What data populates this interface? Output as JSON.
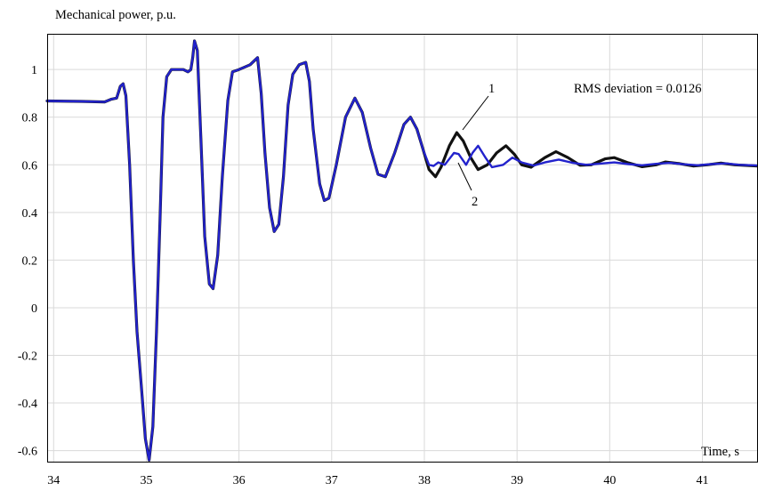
{
  "chart_data": {
    "type": "line",
    "title": "",
    "ylabel": "Mechanical power, p.u.",
    "xlabel": "Time, s",
    "annotation": "RMS deviation = 0.0126",
    "xlim": [
      33.93,
      41.6
    ],
    "ylim": [
      -0.65,
      1.15
    ],
    "xticks": [
      34,
      35,
      36,
      37,
      38,
      39,
      40,
      41
    ],
    "yticks": [
      -0.6,
      -0.4,
      -0.2,
      0,
      0.2,
      0.4,
      0.6,
      0.8,
      1
    ],
    "grid": true,
    "series": [
      {
        "name": "1",
        "color": "#111111",
        "points": [
          [
            33.93,
            0.868
          ],
          [
            34.3,
            0.866
          ],
          [
            34.55,
            0.864
          ],
          [
            34.62,
            0.875
          ],
          [
            34.68,
            0.88
          ],
          [
            34.72,
            0.93
          ],
          [
            34.75,
            0.94
          ],
          [
            34.78,
            0.89
          ],
          [
            34.82,
            0.6
          ],
          [
            34.86,
            0.2
          ],
          [
            34.9,
            -0.1
          ],
          [
            34.95,
            -0.35
          ],
          [
            34.99,
            -0.55
          ],
          [
            35.03,
            -0.64
          ],
          [
            35.07,
            -0.5
          ],
          [
            35.11,
            -0.1
          ],
          [
            35.15,
            0.4
          ],
          [
            35.18,
            0.8
          ],
          [
            35.22,
            0.97
          ],
          [
            35.27,
            1.0
          ],
          [
            35.4,
            1.0
          ],
          [
            35.45,
            0.99
          ],
          [
            35.48,
            1.0
          ],
          [
            35.5,
            1.05
          ],
          [
            35.52,
            1.12
          ],
          [
            35.55,
            1.08
          ],
          [
            35.59,
            0.7
          ],
          [
            35.63,
            0.3
          ],
          [
            35.68,
            0.1
          ],
          [
            35.72,
            0.08
          ],
          [
            35.77,
            0.22
          ],
          [
            35.82,
            0.55
          ],
          [
            35.88,
            0.87
          ],
          [
            35.93,
            0.99
          ],
          [
            36.0,
            1.0
          ],
          [
            36.12,
            1.02
          ],
          [
            36.2,
            1.05
          ],
          [
            36.24,
            0.9
          ],
          [
            36.28,
            0.65
          ],
          [
            36.33,
            0.42
          ],
          [
            36.38,
            0.32
          ],
          [
            36.43,
            0.35
          ],
          [
            36.48,
            0.55
          ],
          [
            36.53,
            0.85
          ],
          [
            36.58,
            0.98
          ],
          [
            36.65,
            1.02
          ],
          [
            36.72,
            1.03
          ],
          [
            36.76,
            0.95
          ],
          [
            36.8,
            0.75
          ],
          [
            36.87,
            0.52
          ],
          [
            36.92,
            0.45
          ],
          [
            36.97,
            0.46
          ],
          [
            37.05,
            0.6
          ],
          [
            37.15,
            0.8
          ],
          [
            37.25,
            0.88
          ],
          [
            37.33,
            0.82
          ],
          [
            37.42,
            0.67
          ],
          [
            37.5,
            0.56
          ],
          [
            37.58,
            0.55
          ],
          [
            37.68,
            0.65
          ],
          [
            37.78,
            0.77
          ],
          [
            37.85,
            0.8
          ],
          [
            37.92,
            0.75
          ],
          [
            37.99,
            0.66
          ],
          [
            38.05,
            0.58
          ],
          [
            38.12,
            0.55
          ],
          [
            38.18,
            0.59
          ],
          [
            38.27,
            0.68
          ],
          [
            38.35,
            0.735
          ],
          [
            38.42,
            0.7
          ],
          [
            38.5,
            0.63
          ],
          [
            38.58,
            0.58
          ],
          [
            38.68,
            0.6
          ],
          [
            38.78,
            0.65
          ],
          [
            38.88,
            0.68
          ],
          [
            38.97,
            0.645
          ],
          [
            39.05,
            0.6
          ],
          [
            39.15,
            0.59
          ],
          [
            39.3,
            0.63
          ],
          [
            39.42,
            0.655
          ],
          [
            39.55,
            0.63
          ],
          [
            39.68,
            0.598
          ],
          [
            39.8,
            0.6
          ],
          [
            39.95,
            0.625
          ],
          [
            40.05,
            0.63
          ],
          [
            40.2,
            0.608
          ],
          [
            40.35,
            0.592
          ],
          [
            40.5,
            0.6
          ],
          [
            40.6,
            0.612
          ],
          [
            40.75,
            0.605
          ],
          [
            40.9,
            0.595
          ],
          [
            41.05,
            0.6
          ],
          [
            41.2,
            0.607
          ],
          [
            41.35,
            0.6
          ],
          [
            41.6,
            0.595
          ]
        ]
      },
      {
        "name": "2",
        "color": "#2222cc",
        "points": [
          [
            33.93,
            0.868
          ],
          [
            34.3,
            0.866
          ],
          [
            34.55,
            0.864
          ],
          [
            34.62,
            0.875
          ],
          [
            34.68,
            0.88
          ],
          [
            34.72,
            0.93
          ],
          [
            34.75,
            0.94
          ],
          [
            34.78,
            0.89
          ],
          [
            34.82,
            0.6
          ],
          [
            34.86,
            0.2
          ],
          [
            34.9,
            -0.1
          ],
          [
            34.95,
            -0.35
          ],
          [
            34.99,
            -0.55
          ],
          [
            35.03,
            -0.64
          ],
          [
            35.07,
            -0.5
          ],
          [
            35.11,
            -0.1
          ],
          [
            35.15,
            0.4
          ],
          [
            35.18,
            0.8
          ],
          [
            35.22,
            0.97
          ],
          [
            35.27,
            1.0
          ],
          [
            35.4,
            1.0
          ],
          [
            35.45,
            0.99
          ],
          [
            35.48,
            1.0
          ],
          [
            35.5,
            1.05
          ],
          [
            35.52,
            1.12
          ],
          [
            35.55,
            1.08
          ],
          [
            35.59,
            0.7
          ],
          [
            35.63,
            0.3
          ],
          [
            35.68,
            0.1
          ],
          [
            35.72,
            0.08
          ],
          [
            35.77,
            0.22
          ],
          [
            35.82,
            0.55
          ],
          [
            35.88,
            0.87
          ],
          [
            35.93,
            0.99
          ],
          [
            36.0,
            1.0
          ],
          [
            36.12,
            1.02
          ],
          [
            36.2,
            1.05
          ],
          [
            36.24,
            0.9
          ],
          [
            36.28,
            0.65
          ],
          [
            36.33,
            0.42
          ],
          [
            36.38,
            0.32
          ],
          [
            36.43,
            0.35
          ],
          [
            36.48,
            0.55
          ],
          [
            36.53,
            0.85
          ],
          [
            36.58,
            0.98
          ],
          [
            36.65,
            1.02
          ],
          [
            36.72,
            1.03
          ],
          [
            36.76,
            0.95
          ],
          [
            36.8,
            0.75
          ],
          [
            36.87,
            0.52
          ],
          [
            36.92,
            0.45
          ],
          [
            36.97,
            0.46
          ],
          [
            37.05,
            0.6
          ],
          [
            37.15,
            0.8
          ],
          [
            37.25,
            0.88
          ],
          [
            37.33,
            0.82
          ],
          [
            37.42,
            0.67
          ],
          [
            37.5,
            0.56
          ],
          [
            37.58,
            0.55
          ],
          [
            37.68,
            0.65
          ],
          [
            37.78,
            0.77
          ],
          [
            37.85,
            0.8
          ],
          [
            37.92,
            0.75
          ],
          [
            37.99,
            0.66
          ],
          [
            38.05,
            0.6
          ],
          [
            38.1,
            0.595
          ],
          [
            38.15,
            0.61
          ],
          [
            38.22,
            0.6
          ],
          [
            38.32,
            0.65
          ],
          [
            38.37,
            0.645
          ],
          [
            38.45,
            0.6
          ],
          [
            38.52,
            0.65
          ],
          [
            38.58,
            0.68
          ],
          [
            38.66,
            0.63
          ],
          [
            38.73,
            0.59
          ],
          [
            38.85,
            0.6
          ],
          [
            38.95,
            0.63
          ],
          [
            39.05,
            0.61
          ],
          [
            39.18,
            0.597
          ],
          [
            39.3,
            0.61
          ],
          [
            39.45,
            0.622
          ],
          [
            39.6,
            0.608
          ],
          [
            39.75,
            0.6
          ],
          [
            39.9,
            0.605
          ],
          [
            40.05,
            0.61
          ],
          [
            40.2,
            0.603
          ],
          [
            40.35,
            0.598
          ],
          [
            40.5,
            0.604
          ],
          [
            40.65,
            0.608
          ],
          [
            40.8,
            0.602
          ],
          [
            40.95,
            0.598
          ],
          [
            41.1,
            0.603
          ],
          [
            41.25,
            0.606
          ],
          [
            41.4,
            0.6
          ],
          [
            41.6,
            0.597
          ]
        ]
      }
    ]
  }
}
